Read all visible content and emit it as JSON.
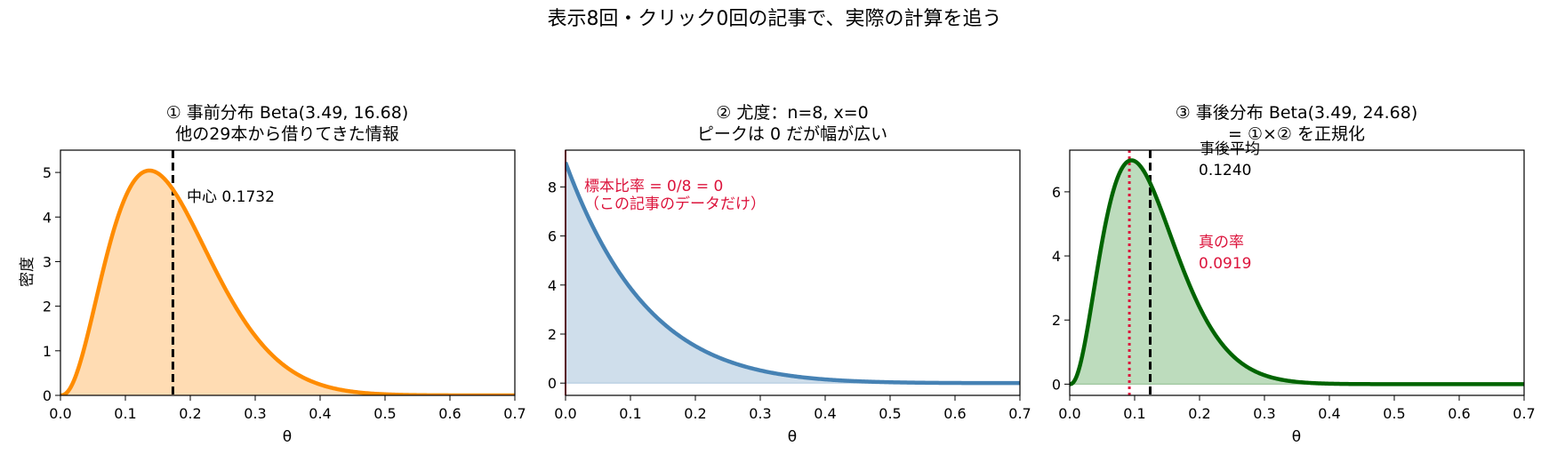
{
  "figure": {
    "suptitle": "表示8回・クリック0回の記事で、実際の計算を追う",
    "ylabel_first": "密度"
  },
  "chart_data": [
    {
      "type": "line",
      "title_line1": "① 事前分布 Beta(3.49, 16.68)",
      "title_line2": "他の29本から借りてきた情報",
      "xlabel": "θ",
      "ylabel": "密度",
      "xlim": [
        0,
        0.7
      ],
      "ylim": [
        0,
        5.5
      ],
      "xticks": [
        "0.0",
        "0.1",
        "0.2",
        "0.3",
        "0.4",
        "0.5",
        "0.6",
        "0.7"
      ],
      "yticks": [
        "0",
        "1",
        "2",
        "3",
        "4",
        "5"
      ],
      "grid": false,
      "series": [
        {
          "kind": "beta_density",
          "alpha": 3.49,
          "beta": 16.68,
          "color": "#ff8c00",
          "fill": "#ffdcb3"
        }
      ],
      "vlines": [
        {
          "x": 0.1732,
          "color": "#000000",
          "style": "dashed"
        }
      ],
      "annotations": [
        {
          "text": "中心 0.1732",
          "color": "#000000"
        }
      ]
    },
    {
      "type": "line",
      "title_line1": "② 尤度：n=8, x=0",
      "title_line2": "ピークは 0 だが幅が広い",
      "xlabel": "θ",
      "xlim": [
        0,
        0.7
      ],
      "ylim": [
        -0.5,
        9.5
      ],
      "xticks": [
        "0.0",
        "0.1",
        "0.2",
        "0.3",
        "0.4",
        "0.5",
        "0.6",
        "0.7"
      ],
      "yticks": [
        "0",
        "2",
        "4",
        "6",
        "8"
      ],
      "grid": false,
      "series": [
        {
          "kind": "binomial_likelihood_scaled",
          "n": 8,
          "x": 0,
          "peak_value": 9,
          "color": "#4682b4",
          "fill": "#cfdeeb"
        }
      ],
      "vlines": [
        {
          "x": 0,
          "color": "#dc143c",
          "style": "solid"
        }
      ],
      "annotations": [
        {
          "text": "標本比率 = 0/8 = 0",
          "color": "#dc143c"
        },
        {
          "text": "（この記事のデータだけ）",
          "color": "#dc143c"
        }
      ]
    },
    {
      "type": "line",
      "title_line1": "③ 事後分布 Beta(3.49, 24.68)",
      "title_line2": "= ①×② を正規化",
      "xlabel": "θ",
      "xlim": [
        0,
        0.7
      ],
      "ylim": [
        -0.35,
        7.3
      ],
      "xticks": [
        "0.0",
        "0.1",
        "0.2",
        "0.3",
        "0.4",
        "0.5",
        "0.6",
        "0.7"
      ],
      "yticks": [
        "0",
        "2",
        "4",
        "6"
      ],
      "grid": false,
      "series": [
        {
          "kind": "beta_density",
          "alpha": 3.49,
          "beta": 24.68,
          "color": "#006400",
          "fill": "#bddcbd"
        }
      ],
      "vlines": [
        {
          "x": 0.124,
          "color": "#000000",
          "style": "dashed"
        },
        {
          "x": 0.0919,
          "color": "#dc143c",
          "style": "dotted"
        }
      ],
      "annotations": [
        {
          "text": "事後平均",
          "color": "#000000"
        },
        {
          "text": "0.1240",
          "color": "#000000"
        },
        {
          "text": "真の率",
          "color": "#dc143c"
        },
        {
          "text": "0.0919",
          "color": "#dc143c"
        }
      ]
    }
  ]
}
